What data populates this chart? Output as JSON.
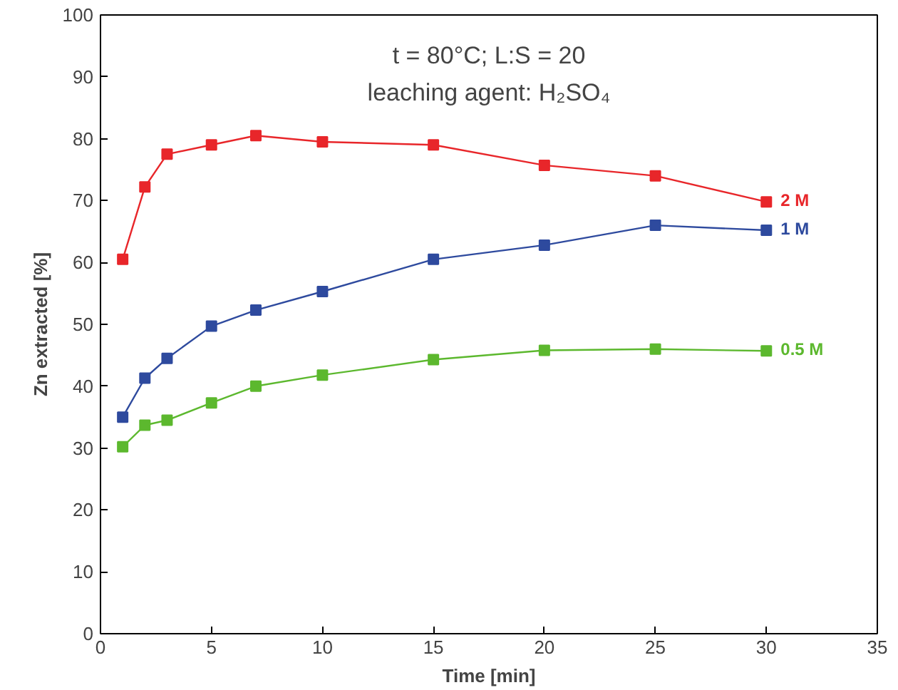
{
  "chart_data": {
    "type": "line",
    "title": "t = 80°C; L:S = 20\nleaching agent: H₂SO₄",
    "xlabel": "Time [min]",
    "ylabel": "Zn extracted [%]",
    "x": [
      1,
      2,
      3,
      5,
      7,
      10,
      15,
      20,
      25,
      30
    ],
    "series": [
      {
        "name": "2 M",
        "color": "#e8262a",
        "values": [
          60.5,
          72.2,
          77.5,
          79,
          80.5,
          79.5,
          79,
          75.7,
          74,
          69.8
        ]
      },
      {
        "name": "1 M",
        "color": "#2e4a9e",
        "values": [
          35,
          41.3,
          44.5,
          49.7,
          52.3,
          55.3,
          60.5,
          62.8,
          66,
          65.2
        ]
      },
      {
        "name": "0.5 M",
        "color": "#5cb82e",
        "values": [
          30.2,
          33.7,
          34.5,
          37.3,
          40,
          41.8,
          44.3,
          45.8,
          46,
          45.7
        ]
      }
    ],
    "xlim": [
      0,
      35
    ],
    "ylim": [
      0,
      100
    ],
    "xticks": [
      0,
      5,
      10,
      15,
      20,
      25,
      30,
      35
    ],
    "yticks": [
      0,
      10,
      20,
      30,
      40,
      50,
      60,
      70,
      80,
      90,
      100
    ],
    "marker": "square",
    "line_style": "solid",
    "grid": false,
    "legend": false
  }
}
